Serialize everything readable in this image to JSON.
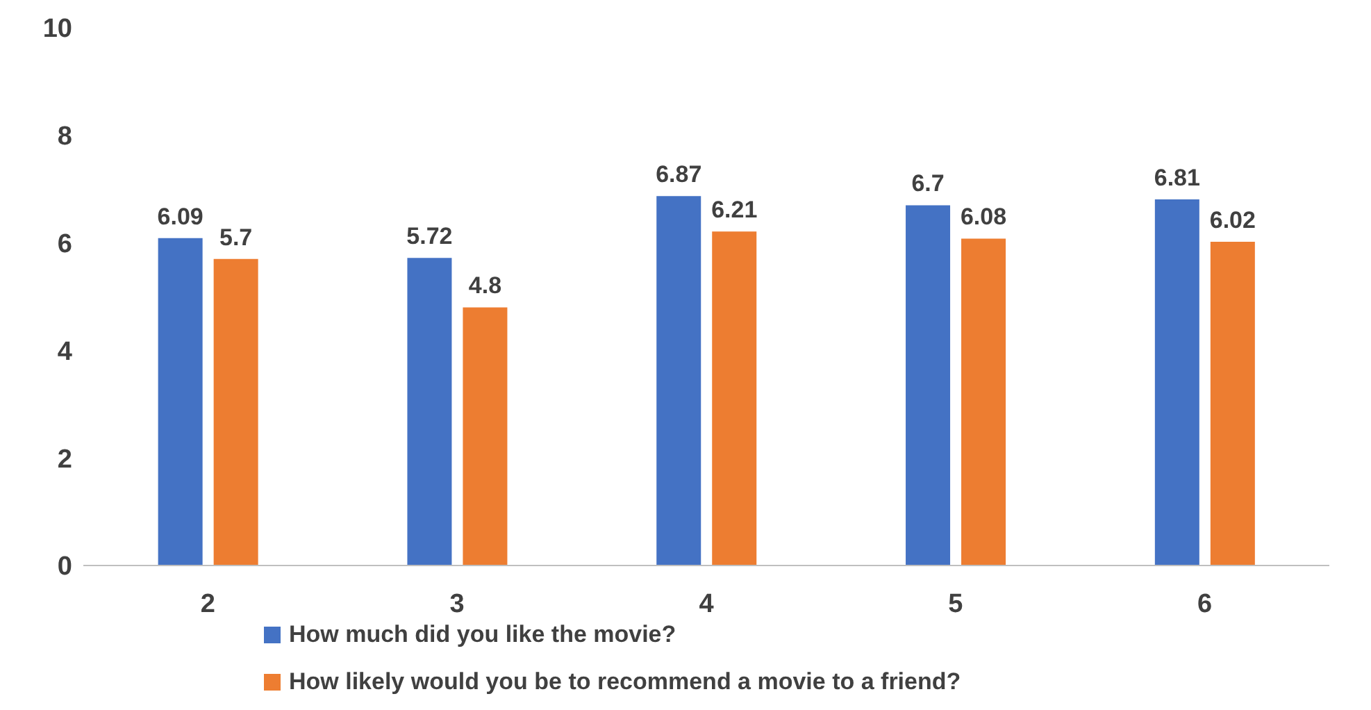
{
  "chart_data": {
    "type": "bar",
    "categories": [
      "2",
      "3",
      "4",
      "5",
      "6"
    ],
    "series": [
      {
        "name": "How much did you like the movie?",
        "color": "#4472c4",
        "values": [
          6.09,
          5.72,
          6.87,
          6.7,
          6.81
        ]
      },
      {
        "name": "How likely would you be to recommend a movie to a friend?",
        "color": "#ed7d31",
        "values": [
          5.7,
          4.8,
          6.21,
          6.08,
          6.02
        ]
      }
    ],
    "ylim": [
      0,
      10
    ],
    "yticks": [
      0,
      2,
      4,
      6,
      8,
      10
    ],
    "grid": false,
    "data_labels": true,
    "legend": "bottom"
  }
}
